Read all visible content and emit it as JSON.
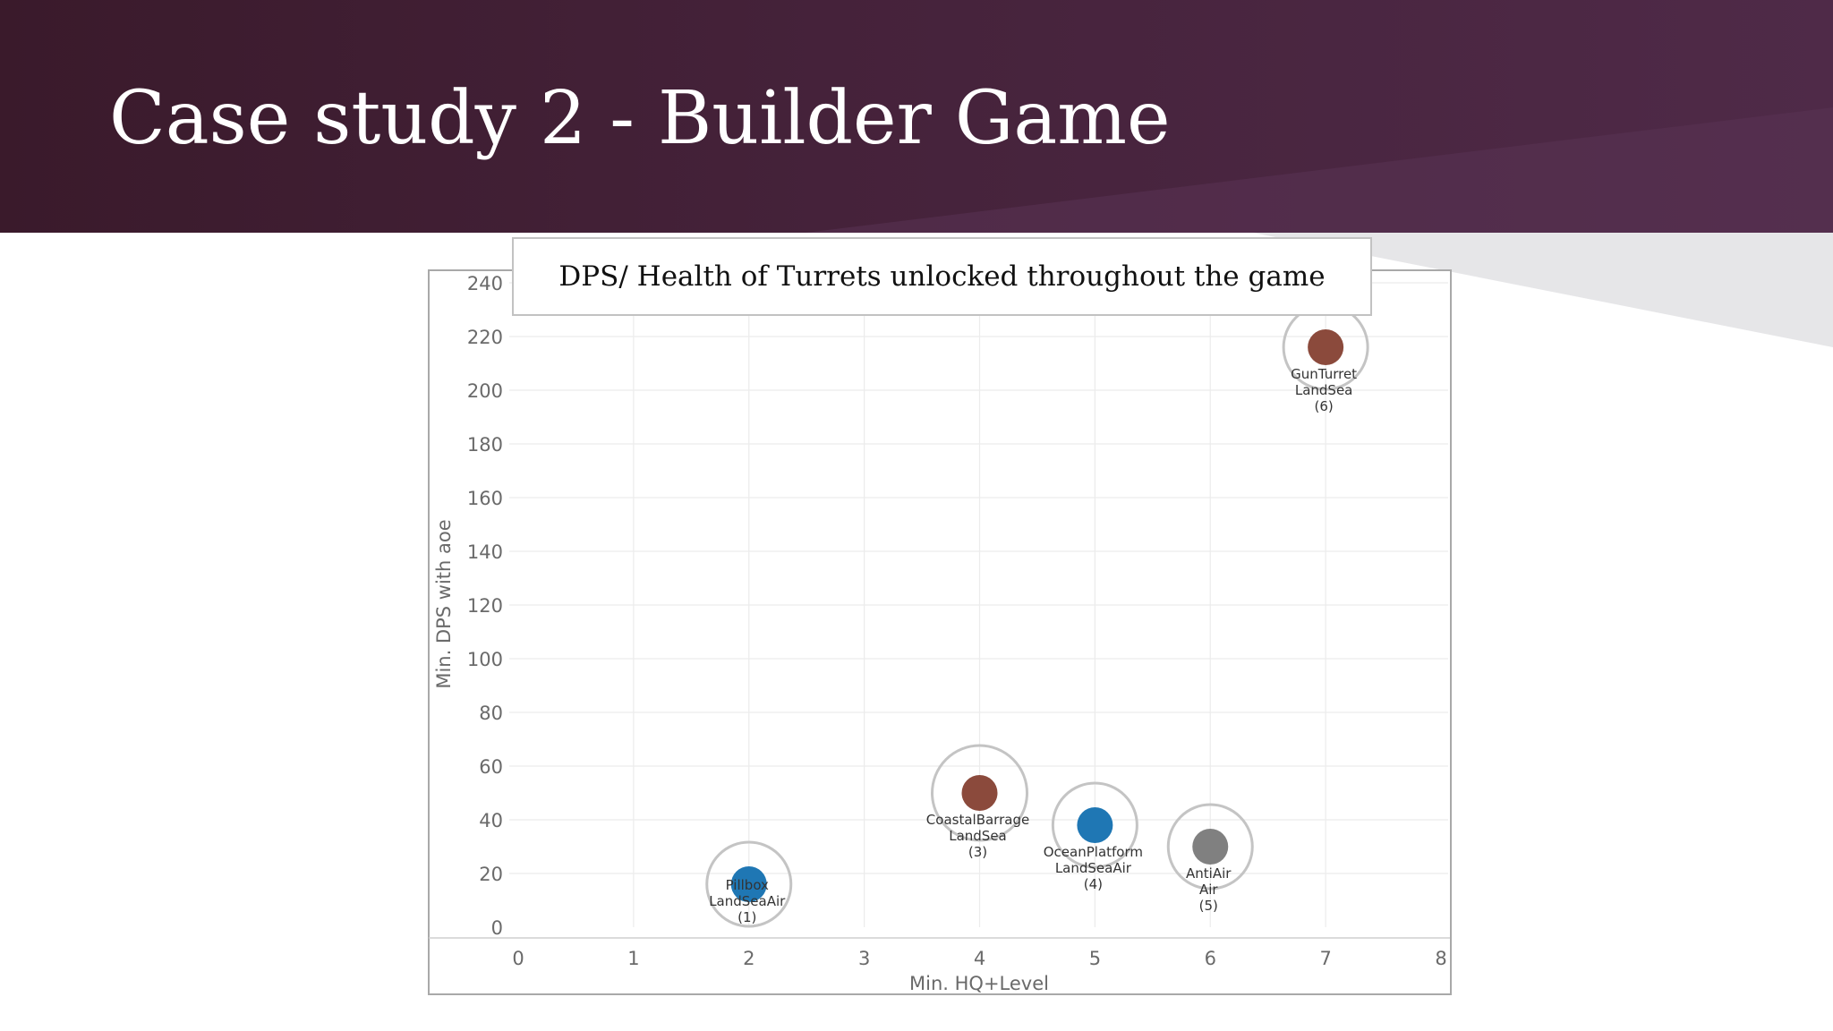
{
  "slide": {
    "title": "Case study 2 - Builder Game"
  },
  "chart_data": {
    "type": "scatter",
    "title": "DPS/ Health of Turrets unlocked throughout the game",
    "xlabel": "Min. HQ+Level",
    "ylabel": "Min. DPS with aoe",
    "xlim": [
      0,
      8
    ],
    "ylim": [
      0,
      240
    ],
    "x_ticks": [
      "0",
      "1",
      "2",
      "3",
      "4",
      "5",
      "6",
      "7",
      "8"
    ],
    "y_ticks": [
      "0",
      "20",
      "40",
      "60",
      "80",
      "100",
      "120",
      "140",
      "160",
      "180",
      "200",
      "220",
      "240"
    ],
    "grid": true,
    "colors": {
      "LandSea": "#8b4a3c",
      "LandSeaAir": "#1f77b4",
      "Air": "#808080"
    },
    "points": [
      {
        "name": "Pillbox",
        "domain": "LandSeaAir",
        "order": "(1)",
        "x": 2,
        "y": 16,
        "halo": "medium"
      },
      {
        "name": "CoastalBarrage",
        "domain": "LandSea",
        "order": "(3)",
        "x": 4,
        "y": 50,
        "halo": "large"
      },
      {
        "name": "OceanPlatform",
        "domain": "LandSeaAir",
        "order": "(4)",
        "x": 5,
        "y": 38,
        "halo": "medium"
      },
      {
        "name": "AntiAir",
        "domain": "Air",
        "order": "(5)",
        "x": 6,
        "y": 30,
        "halo": "medium"
      },
      {
        "name": "GunTurret",
        "domain": "LandSea",
        "order": "(6)",
        "x": 7,
        "y": 216,
        "halo": "medium"
      }
    ]
  }
}
